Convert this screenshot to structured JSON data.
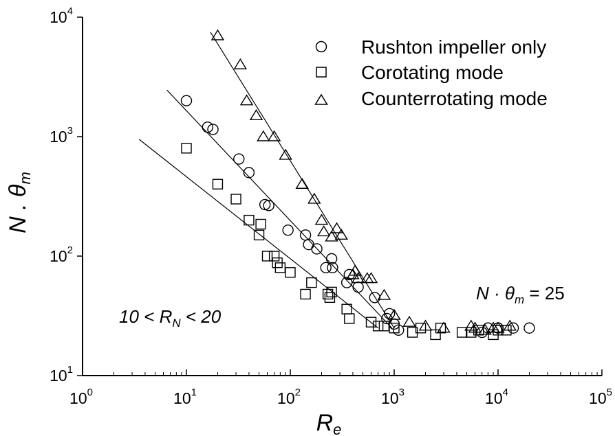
{
  "chart_data": {
    "type": "scatter",
    "title": "",
    "xscale": "log",
    "yscale": "log",
    "xlim": [
      1,
      100000
    ],
    "ylim": [
      10,
      10000
    ],
    "xlabel": {
      "base": "R",
      "sub": "e"
    },
    "ylabel": {
      "pre": "N . ",
      "sym": "θ",
      "sub": "m"
    },
    "x_ticks": [
      {
        "base": "10",
        "exp": "0",
        "value": 1
      },
      {
        "base": "10",
        "exp": "1",
        "value": 10
      },
      {
        "base": "10",
        "exp": "2",
        "value": 100
      },
      {
        "base": "10",
        "exp": "3",
        "value": 1000
      },
      {
        "base": "10",
        "exp": "4",
        "value": 10000
      },
      {
        "base": "10",
        "exp": "5",
        "value": 100000
      }
    ],
    "y_ticks": [
      {
        "base": "10",
        "exp": "1",
        "value": 10
      },
      {
        "base": "10",
        "exp": "2",
        "value": 100
      },
      {
        "base": "10",
        "exp": "3",
        "value": 1000
      },
      {
        "base": "10",
        "exp": "4",
        "value": 10000
      }
    ],
    "legend_position": "top-right",
    "grid": false,
    "series": [
      {
        "name": "Rushton impeller only",
        "marker": "circle",
        "points": [
          [
            10,
            2000
          ],
          [
            16,
            1200
          ],
          [
            18,
            1150
          ],
          [
            32,
            650
          ],
          [
            40,
            500
          ],
          [
            57,
            270
          ],
          [
            62,
            265
          ],
          [
            95,
            165
          ],
          [
            140,
            150
          ],
          [
            150,
            125
          ],
          [
            180,
            115
          ],
          [
            220,
            80
          ],
          [
            250,
            95
          ],
          [
            255,
            80
          ],
          [
            350,
            60
          ],
          [
            370,
            70
          ],
          [
            450,
            55
          ],
          [
            650,
            45
          ],
          [
            850,
            30
          ],
          [
            900,
            33
          ],
          [
            1000,
            27
          ],
          [
            1100,
            24
          ],
          [
            7000,
            23
          ],
          [
            8000,
            25
          ],
          [
            10000,
            25
          ],
          [
            14000,
            25
          ],
          [
            20000,
            25
          ]
        ]
      },
      {
        "name": "Corotating mode",
        "marker": "square",
        "points": [
          [
            10,
            800
          ],
          [
            20,
            400
          ],
          [
            30,
            300
          ],
          [
            40,
            200
          ],
          [
            52,
            185
          ],
          [
            50,
            150
          ],
          [
            60,
            100
          ],
          [
            70,
            100
          ],
          [
            75,
            88
          ],
          [
            80,
            80
          ],
          [
            100,
            73
          ],
          [
            140,
            48
          ],
          [
            160,
            60
          ],
          [
            230,
            48
          ],
          [
            240,
            45
          ],
          [
            250,
            50
          ],
          [
            350,
            36
          ],
          [
            370,
            30
          ],
          [
            600,
            28
          ],
          [
            700,
            26
          ],
          [
            800,
            26
          ],
          [
            1000,
            25
          ],
          [
            1500,
            23
          ],
          [
            1800,
            25
          ],
          [
            2500,
            22
          ],
          [
            2800,
            25
          ],
          [
            4500,
            23
          ],
          [
            5500,
            23
          ],
          [
            6500,
            24
          ],
          [
            9000,
            22
          ],
          [
            10000,
            24
          ],
          [
            12000,
            24
          ]
        ]
      },
      {
        "name": "Counterrotating mode",
        "marker": "triangle",
        "points": [
          [
            20,
            7000
          ],
          [
            33,
            4000
          ],
          [
            38,
            2000
          ],
          [
            47,
            1500
          ],
          [
            55,
            1000
          ],
          [
            70,
            1000
          ],
          [
            90,
            700
          ],
          [
            130,
            400
          ],
          [
            170,
            300
          ],
          [
            200,
            200
          ],
          [
            210,
            160
          ],
          [
            250,
            145
          ],
          [
            280,
            170
          ],
          [
            310,
            150
          ],
          [
            400,
            70
          ],
          [
            420,
            75
          ],
          [
            450,
            65
          ],
          [
            550,
            65
          ],
          [
            600,
            65
          ],
          [
            800,
            47
          ],
          [
            1000,
            32
          ],
          [
            1400,
            28
          ],
          [
            2000,
            26
          ],
          [
            3000,
            25
          ],
          [
            5500,
            26
          ],
          [
            6000,
            25
          ],
          [
            7500,
            24
          ],
          [
            9000,
            25
          ],
          [
            10000,
            25
          ],
          [
            13000,
            26
          ]
        ]
      }
    ],
    "fit_lines": [
      {
        "from": [
          3.5,
          950
        ],
        "to": [
          700,
          25
        ]
      },
      {
        "from": [
          6.5,
          2450
        ],
        "to": [
          950,
          25
        ]
      },
      {
        "from": [
          17,
          7500
        ],
        "to": [
          1000,
          25
        ]
      }
    ],
    "annotations": {
      "range": {
        "pre": "10 < ",
        "var": "R",
        "sub": "N",
        "post": " < 20"
      },
      "plateau": {
        "pre": "N · ",
        "sym": "θ",
        "sub": "m",
        "post": " = 25"
      }
    }
  }
}
